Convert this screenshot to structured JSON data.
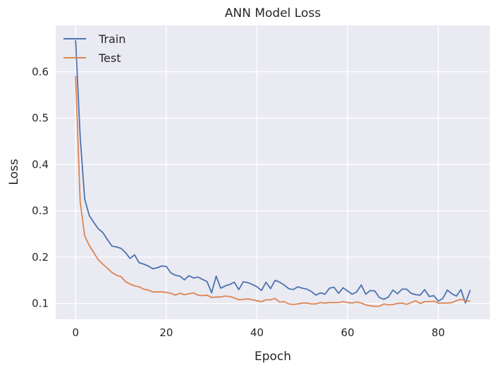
{
  "chart_data": {
    "type": "line",
    "title": "ANN Model Loss",
    "xlabel": "Epoch",
    "ylabel": "Loss",
    "xlim": [
      -4.4,
      91.4
    ],
    "ylim": [
      0.066,
      0.7
    ],
    "xticks": [
      0,
      20,
      40,
      60,
      80
    ],
    "yticks": [
      0.1,
      0.2,
      0.3,
      0.4,
      0.5,
      0.6
    ],
    "grid": true,
    "legend": "top-left",
    "colors": {
      "background": "#eaeaf2",
      "grid": "#ffffff",
      "text": "#262626"
    },
    "series": [
      {
        "name": "Train",
        "color": "#4c72b0",
        "values": [
          0.667,
          0.46,
          0.325,
          0.29,
          0.275,
          0.261,
          0.253,
          0.238,
          0.224,
          0.222,
          0.219,
          0.21,
          0.197,
          0.205,
          0.188,
          0.185,
          0.181,
          0.175,
          0.177,
          0.181,
          0.18,
          0.166,
          0.161,
          0.159,
          0.151,
          0.16,
          0.155,
          0.157,
          0.152,
          0.147,
          0.123,
          0.159,
          0.133,
          0.138,
          0.141,
          0.146,
          0.13,
          0.147,
          0.145,
          0.141,
          0.136,
          0.128,
          0.146,
          0.132,
          0.15,
          0.146,
          0.14,
          0.132,
          0.13,
          0.136,
          0.133,
          0.131,
          0.126,
          0.118,
          0.123,
          0.12,
          0.133,
          0.135,
          0.122,
          0.134,
          0.127,
          0.12,
          0.125,
          0.14,
          0.12,
          0.128,
          0.127,
          0.113,
          0.109,
          0.114,
          0.129,
          0.121,
          0.131,
          0.131,
          0.122,
          0.119,
          0.118,
          0.13,
          0.115,
          0.117,
          0.105,
          0.111,
          0.129,
          0.121,
          0.116,
          0.13,
          0.101,
          0.128
        ]
      },
      {
        "name": "Test",
        "color": "#dd8452",
        "values": [
          0.59,
          0.32,
          0.246,
          0.225,
          0.21,
          0.194,
          0.185,
          0.176,
          0.167,
          0.161,
          0.158,
          0.147,
          0.142,
          0.138,
          0.136,
          0.131,
          0.129,
          0.125,
          0.125,
          0.125,
          0.124,
          0.122,
          0.118,
          0.122,
          0.119,
          0.121,
          0.123,
          0.118,
          0.117,
          0.118,
          0.113,
          0.114,
          0.114,
          0.116,
          0.115,
          0.112,
          0.108,
          0.109,
          0.11,
          0.108,
          0.106,
          0.104,
          0.108,
          0.108,
          0.111,
          0.103,
          0.104,
          0.099,
          0.098,
          0.099,
          0.101,
          0.101,
          0.099,
          0.099,
          0.102,
          0.101,
          0.102,
          0.102,
          0.102,
          0.104,
          0.102,
          0.101,
          0.103,
          0.101,
          0.097,
          0.095,
          0.094,
          0.094,
          0.099,
          0.097,
          0.098,
          0.1,
          0.101,
          0.098,
          0.102,
          0.106,
          0.1,
          0.104,
          0.104,
          0.105,
          0.101,
          0.101,
          0.101,
          0.102,
          0.106,
          0.109,
          0.106,
          0.105
        ]
      }
    ]
  }
}
